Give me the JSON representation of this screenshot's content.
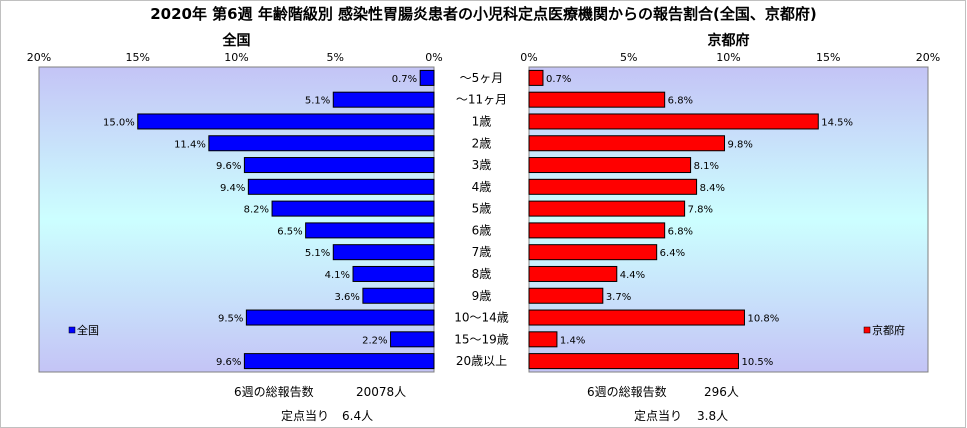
{
  "title": "2020年 第6週 年齢階級別 感染性胃腸炎患者の小児科定点医療機関からの報告割合(全国、京都府)",
  "chart_data": [
    {
      "type": "bar",
      "title": "全国",
      "orientation": "horizontal",
      "direction": "right-to-left",
      "categories": [
        "～5ヶ月",
        "～11ヶ月",
        "1歳",
        "2歳",
        "3歳",
        "4歳",
        "5歳",
        "6歳",
        "7歳",
        "8歳",
        "9歳",
        "10～14歳",
        "15～19歳",
        "20歳以上"
      ],
      "series": [
        {
          "name": "全国",
          "values": [
            0.7,
            5.1,
            15.0,
            11.4,
            9.6,
            9.4,
            8.2,
            6.5,
            5.1,
            4.1,
            3.6,
            9.5,
            2.2,
            9.6
          ],
          "color": "#0000ff"
        }
      ],
      "data_labels": [
        "0.7%",
        "5.1%",
        "15.0%",
        "11.4%",
        "9.6%",
        "9.4%",
        "8.2%",
        "6.5%",
        "5.1%",
        "4.1%",
        "3.6%",
        "9.5%",
        "2.2%",
        "9.6%"
      ],
      "xlim": [
        0,
        20
      ],
      "ticks": [
        "20%",
        "15%",
        "10%",
        "5%",
        "0%"
      ],
      "legend": "left",
      "legend_label": "全国"
    },
    {
      "type": "bar",
      "title": "京都府",
      "orientation": "horizontal",
      "direction": "left-to-right",
      "categories": [
        "～5ヶ月",
        "～11ヶ月",
        "1歳",
        "2歳",
        "3歳",
        "4歳",
        "5歳",
        "6歳",
        "7歳",
        "8歳",
        "9歳",
        "10～14歳",
        "15～19歳",
        "20歳以上"
      ],
      "series": [
        {
          "name": "京都府",
          "values": [
            0.7,
            6.8,
            14.5,
            9.8,
            8.1,
            8.4,
            7.8,
            6.8,
            6.4,
            4.4,
            3.7,
            10.8,
            1.4,
            10.5
          ],
          "color": "#ff0000"
        }
      ],
      "data_labels": [
        "0.7%",
        "6.8%",
        "14.5%",
        "9.8%",
        "8.1%",
        "8.4%",
        "7.8%",
        "6.8%",
        "6.4%",
        "4.4%",
        "3.7%",
        "10.8%",
        "1.4%",
        "10.5%"
      ],
      "xlim": [
        0,
        20
      ],
      "ticks": [
        "0%",
        "5%",
        "10%",
        "15%",
        "20%"
      ],
      "legend": "right",
      "legend_label": "京都府"
    }
  ],
  "footer": {
    "left": {
      "total_label": "6週の総報告数",
      "total_value": "20078人",
      "per_label": "定点当り",
      "per_value": "6.4人"
    },
    "right": {
      "total_label": "6週の総報告数",
      "total_value": "296人",
      "per_label": "定点当り",
      "per_value": "3.8人"
    }
  },
  "colors": {
    "plot_bg_top": "#c8c8f8",
    "plot_bg_mid": "#ccffff",
    "left_bar": "#0000ff",
    "right_bar": "#ff0000"
  }
}
